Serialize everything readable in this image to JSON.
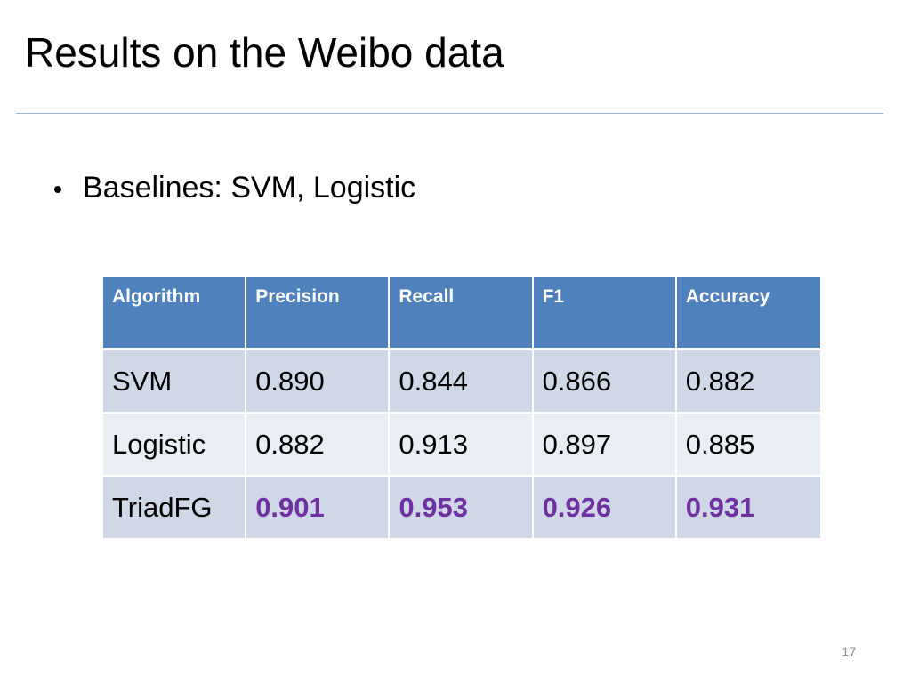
{
  "slide": {
    "title": "Results on the Weibo data",
    "bullet": "Baselines: SVM, Logistic",
    "page_number": "17"
  },
  "table": {
    "headers": [
      "Algorithm",
      "Precision",
      "Recall",
      "F1",
      "Accuracy"
    ],
    "rows": [
      [
        "SVM",
        "0.890",
        "0.844",
        "0.866",
        "0.882"
      ],
      [
        "Logistic",
        "0.882",
        "0.913",
        "0.897",
        "0.885"
      ],
      [
        "TriadFG",
        "0.901",
        "0.953",
        "0.926",
        "0.931"
      ]
    ],
    "highlight_row": "TriadFG"
  },
  "colors": {
    "header_bg": "#4f81bd",
    "row_dark": "#d0d8e8",
    "row_light": "#e9edf4",
    "highlight_text": "#7030a0",
    "title_rule": "#9db7d8"
  }
}
